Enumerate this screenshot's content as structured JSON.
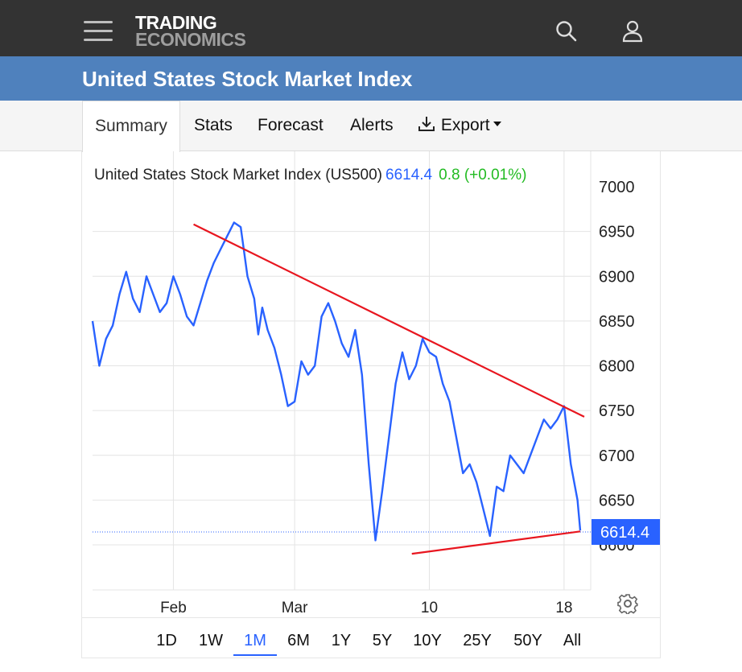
{
  "header": {
    "logo_line1": "TRADING",
    "logo_line2": "ECONOMICS",
    "icons": [
      "menu-icon",
      "search-icon",
      "user-icon"
    ]
  },
  "page_title": "United States Stock Market Index",
  "tabs": [
    {
      "label": "Summary",
      "active": true
    },
    {
      "label": "Stats"
    },
    {
      "label": "Forecast"
    },
    {
      "label": "Alerts"
    },
    {
      "label": "Export",
      "icon": "download-icon",
      "dropdown": true
    }
  ],
  "legend": {
    "name": "United States Stock Market Index (US500)",
    "price": "6614.4",
    "change": "0.8 (+0.01%)"
  },
  "ranges": [
    {
      "label": "1D"
    },
    {
      "label": "1W"
    },
    {
      "label": "1M",
      "active": true
    },
    {
      "label": "6M"
    },
    {
      "label": "1Y"
    },
    {
      "label": "5Y"
    },
    {
      "label": "10Y"
    },
    {
      "label": "25Y"
    },
    {
      "label": "50Y"
    },
    {
      "label": "All"
    }
  ],
  "colors": {
    "accent": "#4f81bd",
    "series": "#2962ff",
    "trendline": "#e8161f",
    "positive": "#22bb22"
  },
  "chart_data": {
    "type": "line",
    "y_ticks": [
      7000,
      6950,
      6900,
      6850,
      6800,
      6750,
      6700,
      6650,
      6600
    ],
    "ylim": [
      6550,
      7010
    ],
    "x_ticks": [
      "Feb",
      "Mar",
      "10",
      "18"
    ],
    "x_tick_positions": [
      21,
      30,
      40,
      50
    ],
    "xlim": [
      15,
      51.5
    ],
    "last_value": 6614.4,
    "last_value_label": "6614.4",
    "grid": true,
    "series": [
      {
        "x": [
          15,
          15.5,
          16,
          16.5,
          17,
          17.5,
          18,
          18.5,
          19,
          19.5,
          20,
          20.5,
          21,
          21.5,
          22,
          22.5,
          23,
          23.5,
          24,
          24.5,
          25,
          25.5,
          26,
          26.5,
          27,
          27.3,
          27.6,
          28,
          28.5,
          29,
          29.5,
          30,
          30.5,
          31,
          31.5,
          32,
          32.5,
          33,
          33.5,
          34,
          34.5,
          35,
          35.5,
          36,
          36.5,
          37,
          37.5,
          38,
          38.5,
          39,
          39.5,
          40,
          40.5,
          41,
          41.5,
          42,
          42.5,
          43,
          43.5,
          44,
          44.5,
          45,
          45.5,
          46,
          46.5,
          47,
          47.5,
          48,
          48.5,
          49,
          49.5,
          50,
          50.5,
          51,
          51.2
        ],
        "values": [
          6850,
          6800,
          6830,
          6845,
          6880,
          6905,
          6875,
          6860,
          6900,
          6880,
          6860,
          6870,
          6900,
          6880,
          6855,
          6845,
          6870,
          6895,
          6915,
          6930,
          6945,
          6960,
          6955,
          6900,
          6875,
          6835,
          6865,
          6840,
          6820,
          6790,
          6755,
          6760,
          6805,
          6790,
          6800,
          6855,
          6870,
          6850,
          6825,
          6810,
          6840,
          6790,
          6690,
          6605,
          6660,
          6720,
          6780,
          6815,
          6785,
          6800,
          6830,
          6815,
          6810,
          6780,
          6760,
          6720,
          6680,
          6690,
          6670,
          6640,
          6610,
          6665,
          6660,
          6700,
          6690,
          6680,
          6700,
          6720,
          6740,
          6730,
          6740,
          6755,
          6690,
          6650,
          6616
        ]
      }
    ],
    "trendlines": [
      {
        "x": [
          22.5,
          51.5
        ],
        "values": [
          6958,
          6743
        ]
      },
      {
        "x": [
          38.7,
          51.2
        ],
        "values": [
          6590,
          6615
        ]
      }
    ]
  }
}
